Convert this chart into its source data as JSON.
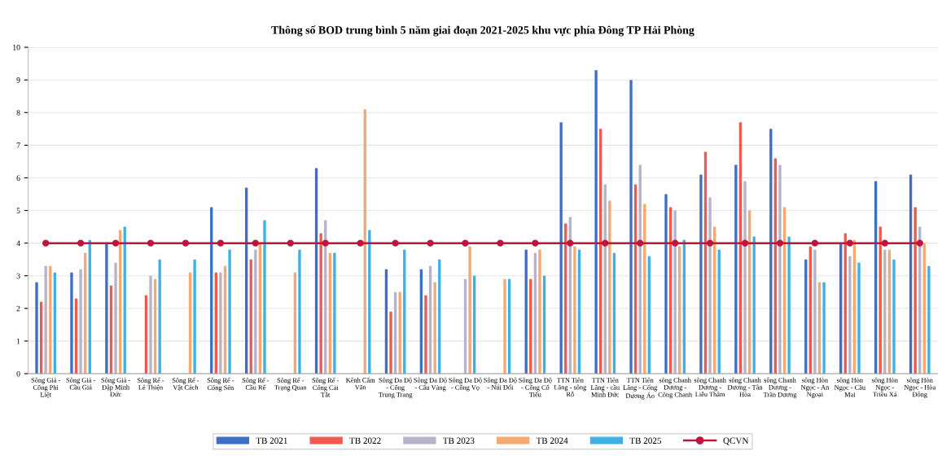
{
  "chart_data": {
    "type": "bar",
    "title": "Thông số BOD trung bình 5 năm giai đoạn 2021-2025 khu vực phía Đông TP Hải Phòng",
    "categories": [
      "Sông Giá - Cống Phi Liệt",
      "Sông Giá - Cầu Giá",
      "Sông Giá - Đập Minh Đức",
      "Sông Rế - Lê Thiện",
      "Sông Rế - Vật Cách",
      "Sông Rế - Cống Sến",
      "Sông Rế - Cầu Rế",
      "Sông Rế - Trạng Quan",
      "Sông Rế - Cống Cái Tắt",
      "Kênh Cẩm Văn",
      "Sông Đa Độ - Cống Trung Trang",
      "Sông Đa Độ - Cầu Vàng",
      "Sông Đa Độ - Cống Vọ",
      "Sông Đa Độ - Núi Đối",
      "Sông Đa Độ - Cống Cổ Tiểu",
      "TTN Tiên Lãng - sông Rỗ",
      "TTN Tiên Lãng - cầu Minh Đức",
      "TTN Tiên Lãng - Cống Dương Áo",
      "sông Chanh Dương - Cống Chanh",
      "sông Chanh Dương - Liễu Thâm",
      "sông Chanh Dương - Tân Hòa",
      "sông Chanh Dương - Trần Dương",
      "sông Hòn Ngọc - An Ngoại",
      "sông Hòn Ngọc - Cầu Mai",
      "sông Hòn Ngọc - Triều Xá",
      "sông Hòn Ngọc - Hòa Đông"
    ],
    "series": [
      {
        "name": "TB 2021",
        "color": "#3f6fc4",
        "values": [
          2.8,
          3.1,
          4.0,
          null,
          null,
          5.1,
          5.7,
          null,
          6.3,
          null,
          3.2,
          3.2,
          null,
          null,
          3.8,
          7.7,
          9.3,
          9.0,
          5.5,
          6.1,
          6.4,
          7.5,
          3.5,
          4.0,
          5.9,
          6.1
        ]
      },
      {
        "name": "TB 2022",
        "color": "#ee5a4f",
        "values": [
          2.2,
          2.3,
          2.7,
          2.4,
          null,
          3.1,
          3.5,
          null,
          4.3,
          null,
          1.9,
          2.4,
          null,
          null,
          2.9,
          4.6,
          7.5,
          5.8,
          5.1,
          6.8,
          7.7,
          6.6,
          3.9,
          4.3,
          4.5,
          5.1
        ]
      },
      {
        "name": "TB 2023",
        "color": "#b7b3c9",
        "values": [
          3.3,
          3.2,
          3.4,
          3.0,
          null,
          3.1,
          3.8,
          null,
          4.7,
          null,
          2.5,
          3.3,
          2.9,
          null,
          3.7,
          4.8,
          5.8,
          6.4,
          5.0,
          5.4,
          5.9,
          6.4,
          3.8,
          3.6,
          3.8,
          4.5
        ]
      },
      {
        "name": "TB 2024",
        "color": "#f5a872",
        "values": [
          3.3,
          3.7,
          4.4,
          2.9,
          3.1,
          3.3,
          4.0,
          3.1,
          3.7,
          8.1,
          2.5,
          2.8,
          3.9,
          2.9,
          3.8,
          3.9,
          5.3,
          5.2,
          3.9,
          4.5,
          5.0,
          5.1,
          2.8,
          4.1,
          3.8,
          4.0
        ]
      },
      {
        "name": "TB 2025",
        "color": "#3fb0e3",
        "values": [
          3.1,
          4.1,
          4.5,
          3.5,
          3.5,
          3.8,
          4.7,
          3.8,
          3.7,
          4.4,
          3.8,
          3.5,
          3.0,
          2.9,
          3.0,
          3.8,
          3.7,
          3.6,
          4.1,
          3.8,
          4.2,
          4.2,
          2.8,
          3.4,
          3.5,
          3.3
        ]
      },
      {
        "name": "QCVN",
        "color": "#c0143c",
        "type": "line",
        "marker": "circle",
        "values": [
          4,
          4,
          4,
          4,
          4,
          4,
          4,
          4,
          4,
          4,
          4,
          4,
          4,
          4,
          4,
          4,
          4,
          4,
          4,
          4,
          4,
          4,
          4,
          4,
          4,
          4
        ]
      }
    ],
    "ylim": [
      0,
      10
    ],
    "yticks": [
      0,
      1,
      2,
      3,
      4,
      5,
      6,
      7,
      8,
      9,
      10
    ],
    "grid": "y",
    "legend": "bottom"
  }
}
